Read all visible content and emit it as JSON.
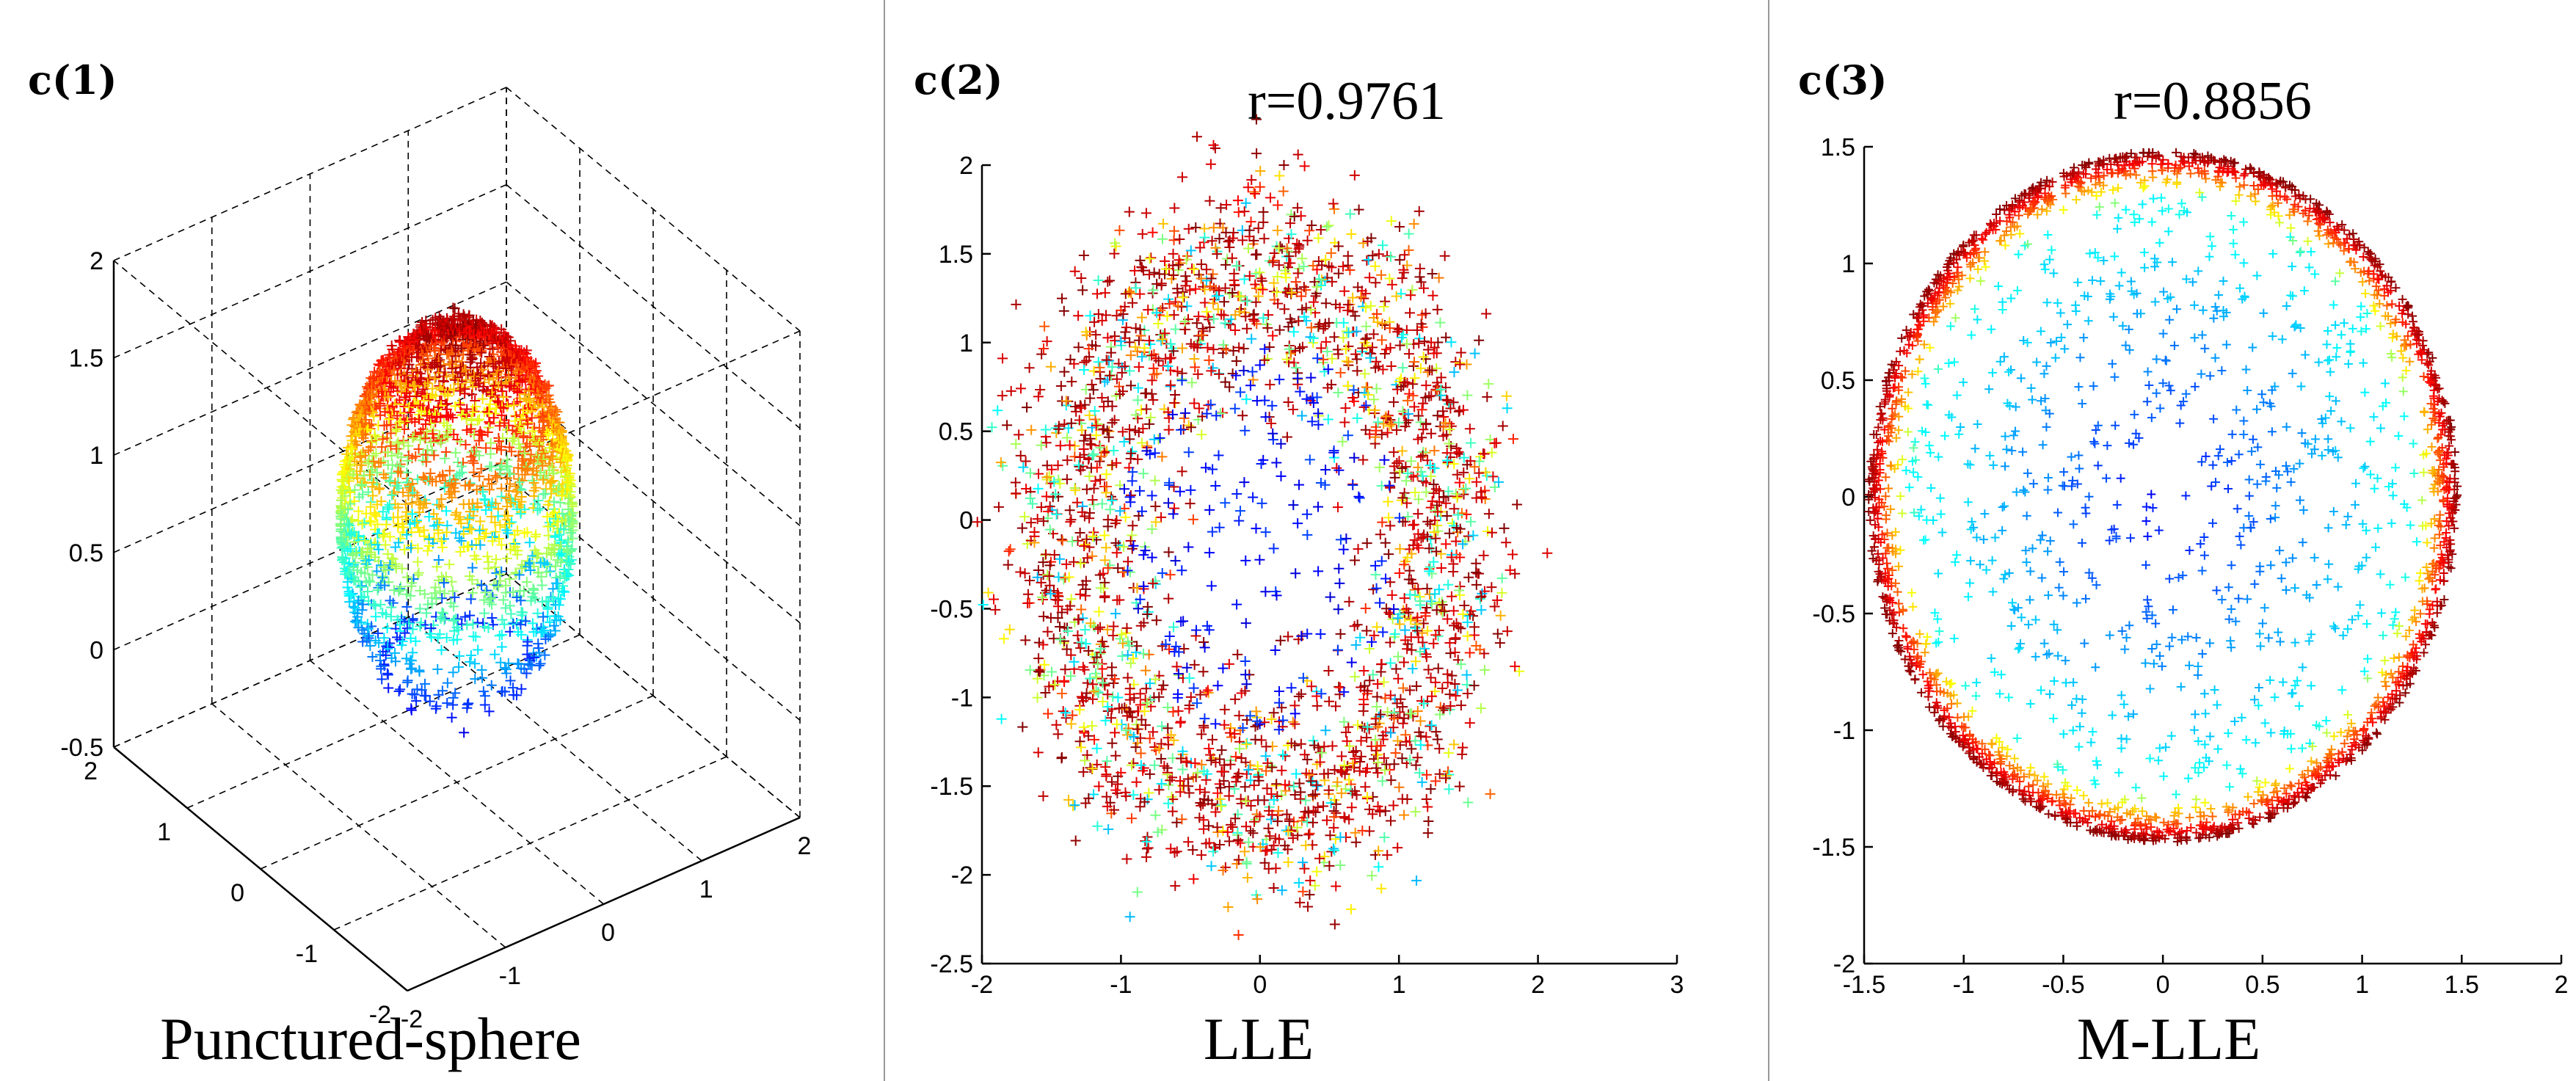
{
  "chart_data": [
    {
      "type": "scatter3d",
      "panel_label": "c(1)",
      "caption": "Punctured-sphere",
      "title": "",
      "marker": "+",
      "colormap": "jet (blue = low z, red = high z)",
      "xlim": [
        -2,
        2
      ],
      "ylim": [
        -2,
        2
      ],
      "zlim": [
        -0.5,
        2
      ],
      "x_ticks": [
        "-2",
        "-1",
        "0",
        "1",
        "2"
      ],
      "y_ticks": [
        "-2",
        "-1",
        "0",
        "1",
        "2"
      ],
      "z_ticks": [
        "-0.5",
        "0",
        "0.5",
        "1",
        "1.5",
        "2"
      ],
      "grid": true,
      "description": "Point cloud of a sphere with a hole at the bottom; roughly 1.6 units in diameter, z from about -0.2 to 1.9"
    },
    {
      "type": "scatter",
      "panel_label": "c(2)",
      "caption": "LLE",
      "title": "r=0.9761",
      "marker": "+",
      "colormap": "jet",
      "xlim": [
        -2,
        3
      ],
      "ylim": [
        -2.5,
        2
      ],
      "x_ticks": [
        "-2",
        "-1",
        "0",
        "1",
        "2",
        "3"
      ],
      "y_ticks": [
        "-2.5",
        "-2",
        "-1.5",
        "-1",
        "-0.5",
        "0",
        "0.5",
        "1",
        "1.5",
        "2"
      ],
      "grid": false,
      "description": "Noisy thick ring centered near (0, -0.1), outer radius about 1.8, mixed colours, sparse blue points inside"
    },
    {
      "type": "scatter",
      "panel_label": "c(3)",
      "caption": "M-LLE",
      "title": "r=0.8856",
      "marker": "+",
      "colormap": "jet",
      "xlim": [
        -1.5,
        2
      ],
      "ylim": [
        -2,
        1.5
      ],
      "x_ticks": [
        "-1.5",
        "-1",
        "-0.5",
        "0",
        "0.5",
        "1",
        "1.5",
        "2"
      ],
      "y_ticks": [
        "-2",
        "-1.5",
        "-1",
        "-0.5",
        "0",
        "0.5",
        "1",
        "1.5"
      ],
      "grid": false,
      "description": "Filled disc of radius about 1.5 centered at origin; red/orange dense rim, cyan/blue interior"
    }
  ]
}
